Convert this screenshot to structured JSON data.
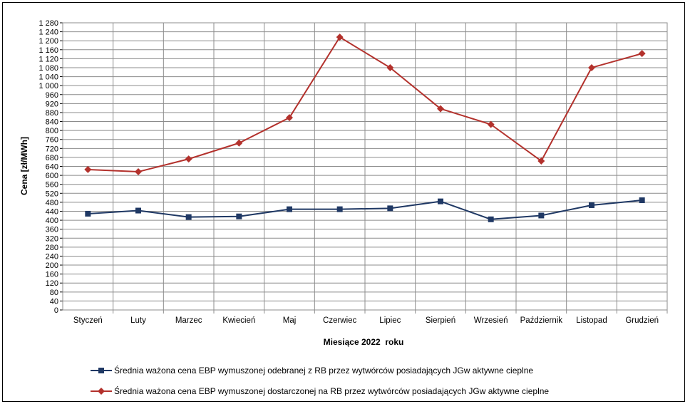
{
  "chart_data": {
    "type": "line",
    "xlabel": "Miesiące 2022  roku",
    "ylabel": "Cena [zł/MWh]",
    "ylim": [
      0,
      1280
    ],
    "ytick_step": 40,
    "grid": true,
    "legend_position": "bottom",
    "categories": [
      "Styczeń",
      "Luty",
      "Marzec",
      "Kwiecień",
      "Maj",
      "Czerwiec",
      "Lipiec",
      "Sierpień",
      "Wrzesień",
      "Październik",
      "Listopad",
      "Grudzień"
    ],
    "series": [
      {
        "name": "Średnia ważona cena EBP wymuszonej odebranej z RB przez wytwórców posiadających JGw aktywne cieplne",
        "color": "#1F3864",
        "marker": "square",
        "values": [
          429,
          443,
          414,
          417,
          449,
          449,
          453,
          484,
          404,
          421,
          467,
          489
        ]
      },
      {
        "name": "Średnia ważona cena EBP wymuszonej dostarczonej na RB przez wytwórców posiadających JGw aktywne cieplne",
        "color": "#B3312C",
        "marker": "diamond",
        "values": [
          626,
          616,
          673,
          744,
          857,
          1216,
          1080,
          897,
          827,
          664,
          1080,
          1143
        ]
      }
    ]
  }
}
